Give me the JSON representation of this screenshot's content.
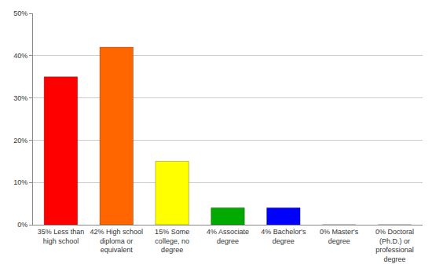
{
  "chart_data": {
    "type": "bar",
    "categories": [
      "35% Less than high school",
      "42% High school diploma or equivalent",
      "15% Some college, no degree",
      "4% Associate degree",
      "4% Bachelor's degree",
      "0% Master's degree",
      "0% Doctoral (Ph.D.) or professional degree"
    ],
    "values": [
      35,
      42,
      15,
      4,
      4,
      0,
      0
    ],
    "colors": [
      "#ff0000",
      "#ff6600",
      "#ffff00",
      "#00aa00",
      "#0000ff",
      "#8800ff",
      "#ff00ff"
    ],
    "ylim": [
      0,
      50
    ],
    "yticks": [
      {
        "value": 0,
        "label": "0%"
      },
      {
        "value": 10,
        "label": "10%"
      },
      {
        "value": 20,
        "label": "20%"
      },
      {
        "value": 30,
        "label": "30%"
      },
      {
        "value": 40,
        "label": "40%"
      },
      {
        "value": 50,
        "label": "50%"
      }
    ],
    "grid": true
  }
}
